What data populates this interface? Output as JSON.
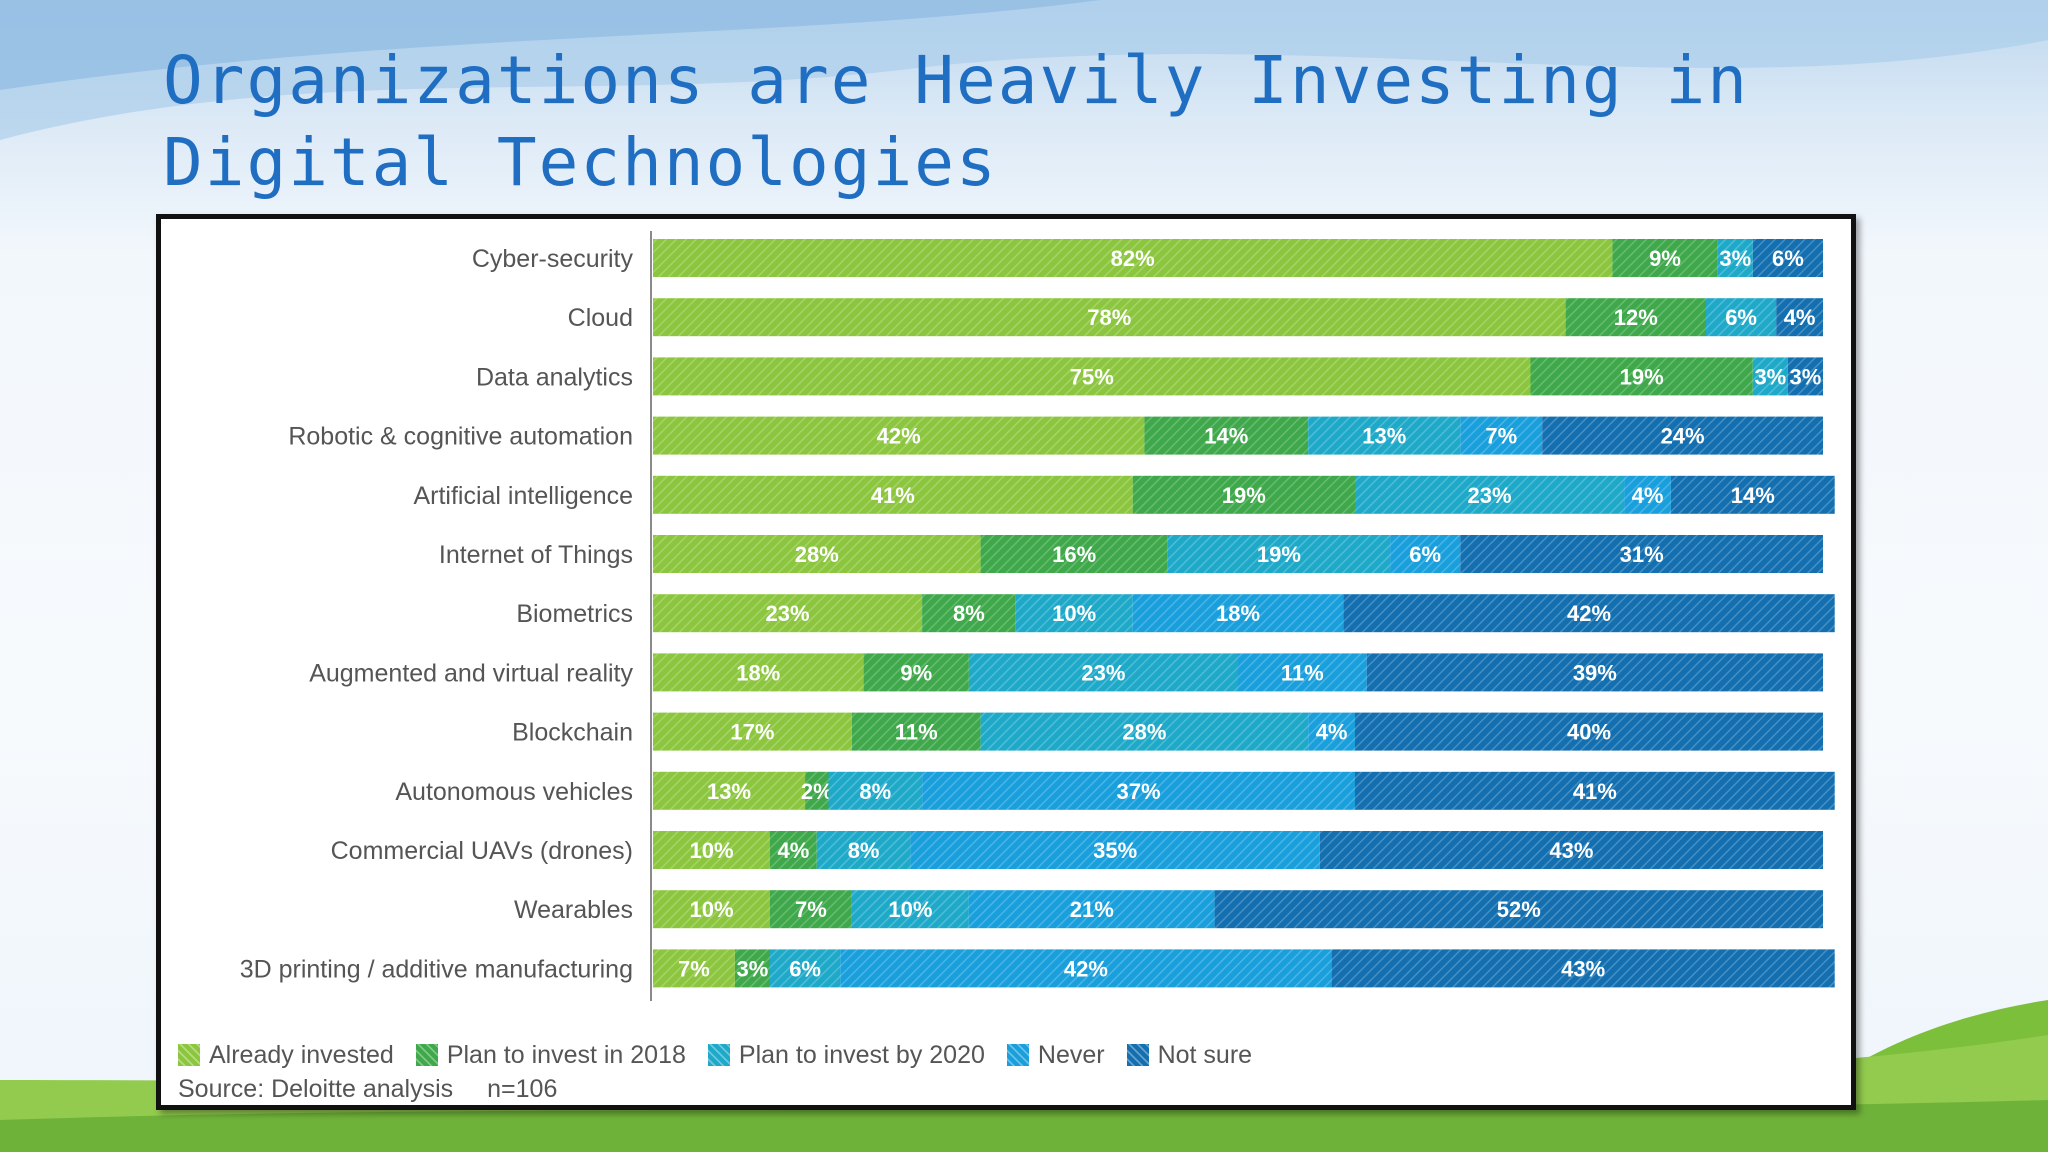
{
  "slide": {
    "title": "Organizations are Heavily Investing in Digital Technologies"
  },
  "colors": {
    "already_invested": "#8cc63f",
    "plan_2018": "#3ea84a",
    "plan_2020": "#1fa9c9",
    "never": "#199fdc",
    "not_sure": "#136fb0"
  },
  "chart_data": {
    "type": "bar",
    "orientation": "horizontal",
    "stacked": true,
    "unit": "%",
    "xlim": [
      0,
      100
    ],
    "categories": [
      "Cyber-security",
      "Cloud",
      "Data analytics",
      "Robotic & cognitive automation",
      "Artificial intelligence",
      "Internet of Things",
      "Biometrics",
      "Augmented and virtual reality",
      "Blockchain",
      "Autonomous vehicles",
      "Commercial UAVs (drones)",
      "Wearables",
      "3D printing / additive manufacturing"
    ],
    "series": [
      {
        "name": "Already invested",
        "values": [
          82,
          78,
          75,
          42,
          41,
          28,
          23,
          18,
          17,
          13,
          10,
          10,
          7
        ]
      },
      {
        "name": "Plan to invest in 2018",
        "values": [
          9,
          12,
          19,
          14,
          19,
          16,
          8,
          9,
          11,
          2,
          4,
          7,
          3
        ]
      },
      {
        "name": "Plan to invest by 2020",
        "values": [
          3,
          6,
          3,
          13,
          23,
          19,
          10,
          23,
          28,
          8,
          8,
          10,
          6
        ]
      },
      {
        "name": "Never",
        "values": [
          0,
          0,
          0,
          7,
          4,
          6,
          18,
          11,
          4,
          37,
          35,
          21,
          42
        ]
      },
      {
        "name": "Not sure",
        "values": [
          6,
          4,
          3,
          24,
          14,
          31,
          42,
          39,
          40,
          41,
          43,
          52,
          43
        ]
      }
    ],
    "grid": false,
    "legend_position": "bottom-left"
  },
  "legend": {
    "items": [
      {
        "label": "Already invested",
        "color": "#8cc63f"
      },
      {
        "label": "Plan to invest in 2018",
        "color": "#3ea84a"
      },
      {
        "label": "Plan to invest by 2020",
        "color": "#1fa9c9"
      },
      {
        "label": "Never",
        "color": "#199fdc"
      },
      {
        "label": "Not sure",
        "color": "#136fb0"
      }
    ]
  },
  "source": {
    "text": "Source: Deloitte analysis",
    "n": "n=106"
  }
}
